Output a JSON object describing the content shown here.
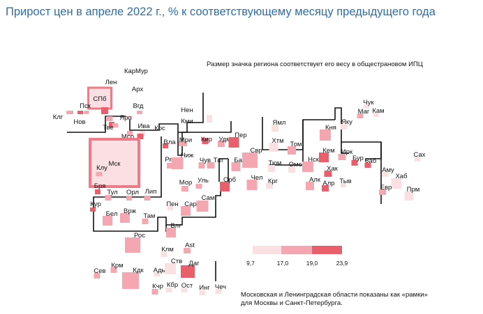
{
  "title": "Прирост цен в апреле 2022 г., % к соответствующему месяцу предыдущего года",
  "notes": {
    "size": "Размер значка региона соответствует его весу в общестрановом ИПЦ",
    "frames_line1": "Московская и Ленинградская области показаны как «рамки»",
    "frames_line2": "для Москвы и Санкт-Петербурга."
  },
  "chart_data": {
    "type": "heatmap",
    "title": "Прирост цен в апреле 2022 г., % к соответствующему месяцу предыдущего года",
    "legend": {
      "ticks": [
        "9,7",
        "17,0",
        "19,0",
        "23,9"
      ],
      "colors": [
        "#fbe0e3",
        "#f4a7b0",
        "#ea5f6c"
      ]
    },
    "colors": {
      "low": "#fbe0e3",
      "mid": "#f4a7b0",
      "high": "#ea5f6c",
      "frame": "#f07a86",
      "border": "#111111"
    },
    "regions": [
      {
        "label": "Кар",
        "bin": 1
      },
      {
        "label": "Мур",
        "bin": 1
      },
      {
        "label": "Лен",
        "bin": 2
      },
      {
        "label": "Арх",
        "bin": 1
      },
      {
        "label": "СПб",
        "bin": 1
      },
      {
        "label": "Пск",
        "bin": 0
      },
      {
        "label": "Вгд",
        "bin": 2
      },
      {
        "label": "Клг",
        "bin": 1
      },
      {
        "label": "Нов",
        "bin": 0
      },
      {
        "label": "Яро",
        "bin": 2
      },
      {
        "label": "Тве",
        "bin": 1
      },
      {
        "label": "Ива",
        "bin": 1
      },
      {
        "label": "Кос",
        "bin": 0
      },
      {
        "label": "Мсо",
        "bin": 2
      },
      {
        "label": "Нен",
        "bin": 0
      },
      {
        "label": "Кми",
        "bin": 0
      },
      {
        "label": "Смо",
        "bin": 1
      },
      {
        "label": "Мск",
        "bin": 0
      },
      {
        "label": "Вла",
        "bin": 2
      },
      {
        "label": "Мри",
        "bin": 1
      },
      {
        "label": "Кир",
        "bin": 2
      },
      {
        "label": "Удм",
        "bin": 1
      },
      {
        "label": "Клу",
        "bin": 1
      },
      {
        "label": "Ряз",
        "bin": 1
      },
      {
        "label": "Ниж",
        "bin": 1
      },
      {
        "label": "Чув",
        "bin": 1
      },
      {
        "label": "Тат",
        "bin": 1
      },
      {
        "label": "Бря",
        "bin": 2
      },
      {
        "label": "Тул",
        "bin": 1
      },
      {
        "label": "Орл",
        "bin": 1
      },
      {
        "label": "Лип",
        "bin": 1
      },
      {
        "label": "Мор",
        "bin": 1
      },
      {
        "label": "Уль",
        "bin": 1
      },
      {
        "label": "Сам",
        "bin": 1
      },
      {
        "label": "Кур",
        "bin": 2
      },
      {
        "label": "Бел",
        "bin": 1
      },
      {
        "label": "Врж",
        "bin": 1
      },
      {
        "label": "Там",
        "bin": 1
      },
      {
        "label": "Пен",
        "bin": 0
      },
      {
        "label": "Сар",
        "bin": 1
      },
      {
        "label": "Влг",
        "bin": 1
      },
      {
        "label": "Рос",
        "bin": 1
      },
      {
        "label": "Ast",
        "bin": 1
      },
      {
        "label": "Клм",
        "bin": 0
      },
      {
        "label": "Кдк",
        "bin": 1
      },
      {
        "label": "Ады",
        "bin": 0
      },
      {
        "label": "Ств",
        "bin": 0
      },
      {
        "label": "Даг",
        "bin": 2
      },
      {
        "label": "Сев",
        "bin": 1
      },
      {
        "label": "Крм",
        "bin": 1
      },
      {
        "label": "Кчр",
        "bin": 1
      },
      {
        "label": "Кбр",
        "bin": 0
      },
      {
        "label": "Ост",
        "bin": 0
      },
      {
        "label": "Инг",
        "bin": 0
      },
      {
        "label": "Чеч",
        "bin": 0
      },
      {
        "label": "Пер",
        "bin": 2
      },
      {
        "label": "Баш",
        "bin": 1
      },
      {
        "label": "Свр",
        "bin": 1
      },
      {
        "label": "Орб",
        "bin": 2
      },
      {
        "label": "Чел",
        "bin": 1
      },
      {
        "label": "Ямл",
        "bin": 0
      },
      {
        "label": "Хтм",
        "bin": 0
      },
      {
        "label": "Тюм",
        "bin": 0
      },
      {
        "label": "Крг",
        "bin": 0
      },
      {
        "label": "Том",
        "bin": 1
      },
      {
        "label": "Нск",
        "bin": 1
      },
      {
        "label": "Омс",
        "bin": 0
      },
      {
        "label": "Кня",
        "bin": 1
      },
      {
        "label": "Кем",
        "bin": 2
      },
      {
        "label": "Хак",
        "bin": 2
      },
      {
        "label": "Алк",
        "bin": 1
      },
      {
        "label": "Алр",
        "bin": 2
      },
      {
        "label": "Тыв",
        "bin": 0
      },
      {
        "label": "Чук",
        "bin": 0
      },
      {
        "label": "Маг",
        "bin": 1
      },
      {
        "label": "Кам",
        "bin": 0
      },
      {
        "label": "Яку",
        "bin": 0
      },
      {
        "label": "Ирк",
        "bin": 1
      },
      {
        "label": "Бур",
        "bin": 2
      },
      {
        "label": "Заб",
        "bin": 2
      },
      {
        "label": "Амy",
        "bin": 0
      },
      {
        "label": "Хаб",
        "bin": 0
      },
      {
        "label": "Евр",
        "bin": 1
      },
      {
        "label": "Прм",
        "bin": 0
      },
      {
        "label": "Сах",
        "bin": 0
      }
    ]
  }
}
